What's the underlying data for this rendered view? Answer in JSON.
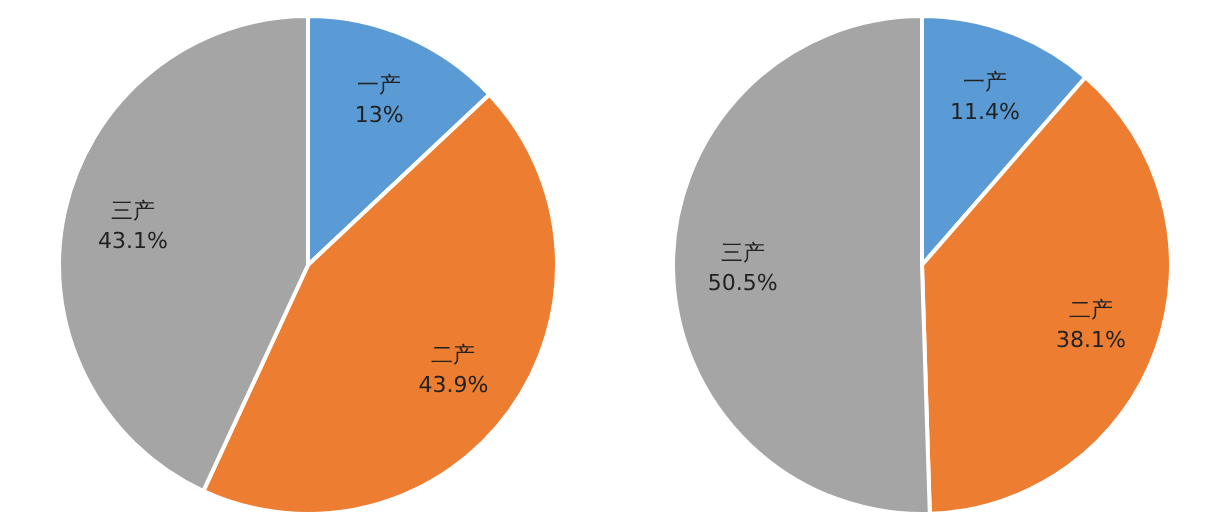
{
  "chart_data": [
    {
      "type": "pie",
      "categories": [
        "一产",
        "二产",
        "三产"
      ],
      "values": [
        13,
        43.9,
        43.1
      ],
      "value_labels": [
        "13%",
        "43.9%",
        "43.1%"
      ],
      "colors": [
        "#5b9bd5",
        "#ed7d31",
        "#a5a5a5"
      ]
    },
    {
      "type": "pie",
      "categories": [
        "一产",
        "二产",
        "三产"
      ],
      "values": [
        11.4,
        38.1,
        50.5
      ],
      "value_labels": [
        "11.4%",
        "38.1%",
        "50.5%"
      ],
      "colors": [
        "#5b9bd5",
        "#ed7d31",
        "#a5a5a5"
      ]
    }
  ]
}
